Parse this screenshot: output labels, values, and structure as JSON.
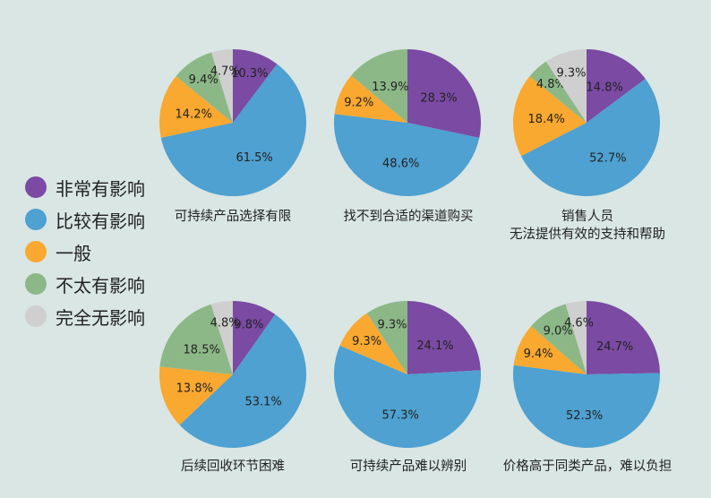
{
  "chart_data": [
    {
      "type": "pie",
      "title": "可持续产品选择有限",
      "labels": [
        "非常有影响",
        "比较有影响",
        "一般",
        "不太有影响",
        "完全无影响"
      ],
      "values": [
        10.3,
        61.5,
        14.2,
        9.4,
        4.7
      ]
    },
    {
      "type": "pie",
      "title": "找不到合适的渠道购买",
      "labels": [
        "非常有影响",
        "比较有影响",
        "一般",
        "不太有影响",
        "完全无影响"
      ],
      "values": [
        28.3,
        48.6,
        9.2,
        13.9,
        0
      ]
    },
    {
      "type": "pie",
      "title": "销售人员\n无法提供有效的支持和帮助",
      "labels": [
        "非常有影响",
        "比较有影响",
        "一般",
        "不太有影响",
        "完全无影响"
      ],
      "values": [
        14.8,
        52.7,
        18.4,
        4.8,
        9.3
      ]
    },
    {
      "type": "pie",
      "title": "后续回收环节困难",
      "labels": [
        "非常有影响",
        "比较有影响",
        "一般",
        "不太有影响",
        "完全无影响"
      ],
      "values": [
        9.8,
        53.1,
        13.8,
        18.5,
        4.8
      ]
    },
    {
      "type": "pie",
      "title": "可持续产品难以辨别",
      "labels": [
        "非常有影响",
        "比较有影响",
        "一般",
        "不太有影响",
        "完全无影响"
      ],
      "values": [
        24.1,
        57.3,
        9.3,
        9.3,
        0
      ]
    },
    {
      "type": "pie",
      "title": "价格高于同类产品，难以负担",
      "labels": [
        "非常有影响",
        "比较有影响",
        "一般",
        "不太有影响",
        "完全无影响"
      ],
      "values": [
        24.7,
        52.3,
        9.4,
        9.0,
        4.6
      ]
    }
  ],
  "legend": {
    "position": "left",
    "items": [
      {
        "label": "非常有影响",
        "color": "#7b4aa3"
      },
      {
        "label": "比较有影响",
        "color": "#4ea1d0"
      },
      {
        "label": "一般",
        "color": "#f9a830"
      },
      {
        "label": "不太有影响",
        "color": "#8cb887"
      },
      {
        "label": "完全无影响",
        "color": "#cfcfcf"
      }
    ]
  }
}
